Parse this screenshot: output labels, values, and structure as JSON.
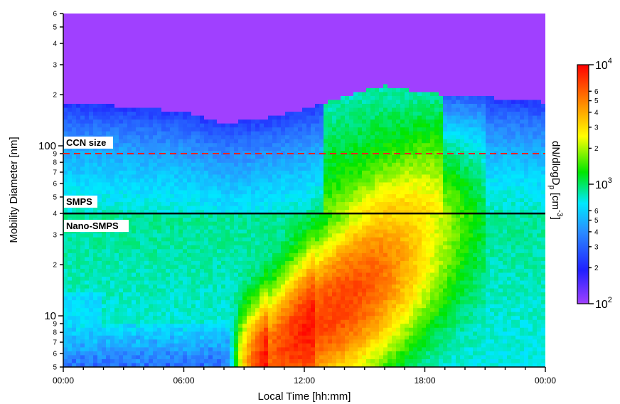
{
  "chart_data": {
    "type": "heatmap",
    "xlabel": "Local Time [hh:mm]",
    "ylabel": "Mobility Diameter [nm]",
    "x_tick_labels": [
      "00:00",
      "06:00",
      "12:00",
      "18:00",
      "00:00"
    ],
    "x_ticks_hours": [
      0,
      6,
      12,
      18,
      24
    ],
    "xlim_hours": [
      0,
      24
    ],
    "y_scale": "log",
    "ylim_nm": [
      5,
      600
    ],
    "y_major_ticks": [
      {
        "value": 10,
        "label": "10"
      },
      {
        "value": 100,
        "label": "100"
      }
    ],
    "y_minor_ticks": [
      {
        "value": 5,
        "label": "5"
      },
      {
        "value": 6,
        "label": "6"
      },
      {
        "value": 7,
        "label": "7"
      },
      {
        "value": 8,
        "label": "8"
      },
      {
        "value": 9,
        "label": "9"
      },
      {
        "value": 20,
        "label": "2"
      },
      {
        "value": 30,
        "label": "3"
      },
      {
        "value": 40,
        "label": "4"
      },
      {
        "value": 50,
        "label": "5"
      },
      {
        "value": 60,
        "label": "6"
      },
      {
        "value": 70,
        "label": "7"
      },
      {
        "value": 80,
        "label": "8"
      },
      {
        "value": 90,
        "label": "9"
      },
      {
        "value": 200,
        "label": "2"
      },
      {
        "value": 300,
        "label": "3"
      },
      {
        "value": 400,
        "label": "4"
      },
      {
        "value": 500,
        "label": "5"
      },
      {
        "value": 600,
        "label": "6"
      }
    ],
    "annotations": [
      {
        "text": "CCN size",
        "diameter_nm": 90,
        "line": "dashed",
        "color": "#ee2222"
      },
      {
        "text": "SMPS",
        "diameter_nm": 40,
        "line": "solid",
        "color": "#000000",
        "position": "above"
      },
      {
        "text": "Nano-SMPS",
        "diameter_nm": 40,
        "position": "below"
      }
    ],
    "colorbar": {
      "label_main": "dN/dlogD",
      "label_sub": "p",
      "label_unit_open": " [cm",
      "label_unit_exp": "-3",
      "label_unit_close": "]",
      "scale": "log",
      "range": [
        100,
        10000
      ],
      "major_ticks": [
        {
          "value": 100,
          "base": "10",
          "exp": "2"
        },
        {
          "value": 1000,
          "base": "10",
          "exp": "3"
        },
        {
          "value": 10000,
          "base": "10",
          "exp": "4"
        }
      ],
      "minor_ticks": [
        {
          "value": 200,
          "label": "2"
        },
        {
          "value": 300,
          "label": "3"
        },
        {
          "value": 400,
          "label": "4"
        },
        {
          "value": 500,
          "label": "5"
        },
        {
          "value": 600,
          "label": "6"
        },
        {
          "value": 2000,
          "label": "2"
        },
        {
          "value": 3000,
          "label": "3"
        },
        {
          "value": 4000,
          "label": "4"
        },
        {
          "value": 5000,
          "label": "5"
        },
        {
          "value": 6000,
          "label": "6"
        }
      ],
      "colormap": [
        "#a040ff",
        "#2020ff",
        "#2a8cff",
        "#00e8ff",
        "#00e600",
        "#ffff00",
        "#ff8000",
        "#ff0000"
      ]
    },
    "features": {
      "background_upper_dmax_hours": [
        0,
        2,
        4,
        6,
        8,
        10,
        12,
        14,
        16,
        18,
        20,
        22,
        24
      ],
      "background_upper_dmax_nm": [
        175,
        175,
        165,
        160,
        135,
        145,
        165,
        195,
        225,
        205,
        195,
        190,
        180
      ],
      "nucleation_event": {
        "start_hours": 8.5,
        "peak_hours": 13,
        "end_hours": 19,
        "peak_concentration": 9000,
        "peak_diameter_nm": 12
      }
    }
  }
}
